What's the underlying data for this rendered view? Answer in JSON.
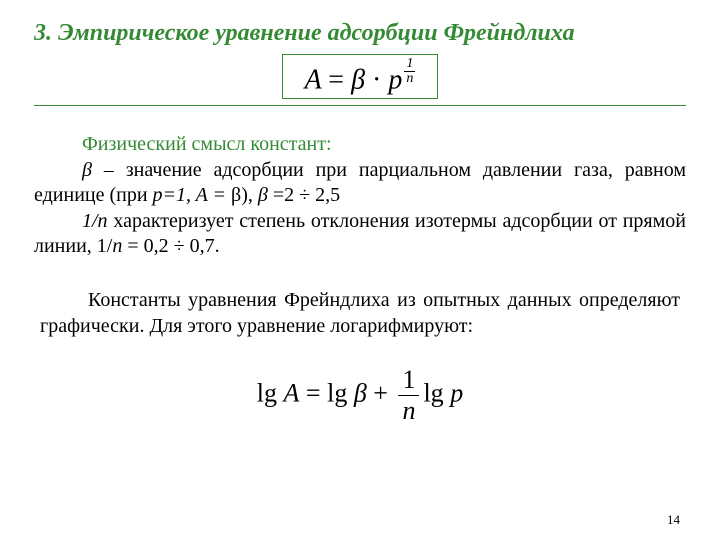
{
  "colors": {
    "accent": "#358a36",
    "text": "#000000",
    "background": "#ffffff"
  },
  "typography": {
    "title_fontsize_pt": 18,
    "title_weight": "bold",
    "title_style": "italic",
    "body_fontsize_pt": 15,
    "eq_fontsize_pt": 21
  },
  "title": "3. Эмпирическое уравнение адсорбции Фрейндлиха",
  "main_equation": {
    "lhs": "A",
    "eq": "=",
    "beta": "β",
    "dot": "·",
    "p": "p",
    "exp_num": "1",
    "exp_den": "n",
    "box_border_color": "#358a36"
  },
  "hr_color": "#358a36",
  "paragraphs": {
    "phys_heading": "Физический смысл констант:",
    "beta_line_1a": "β",
    "beta_line_1b": " –  значение адсорбции при парциальном давлении газа, равном единице (при ",
    "beta_line_1c": "p=1, A = ",
    "beta_line_1d": "β",
    "beta_line_1e": "),    ",
    "beta_line_1f": "β ",
    "beta_line_1g": "=",
    "beta_line_1h": "2 ÷ 2,5",
    "inv_n_1a": "1/n",
    "inv_n_1b": "  характеризует степень отклонения изотермы адсорбции от прямой линии,  1/",
    "inv_n_1c": "n",
    "inv_n_1d": " =  0,2 ÷ 0,7.",
    "const_line": "Константы уравнения Фрейндлиха из опытных данных определяют графически.  Для этого уравнение логарифмируют:"
  },
  "log_equation": {
    "lg1": "lg ",
    "A": "A",
    "eq": " = ",
    "lg2": "lg ",
    "beta": "β",
    "plus": " + ",
    "frac_num": "1",
    "frac_den": "n",
    "lg3": "lg ",
    "p": "p"
  },
  "page_number": "14"
}
